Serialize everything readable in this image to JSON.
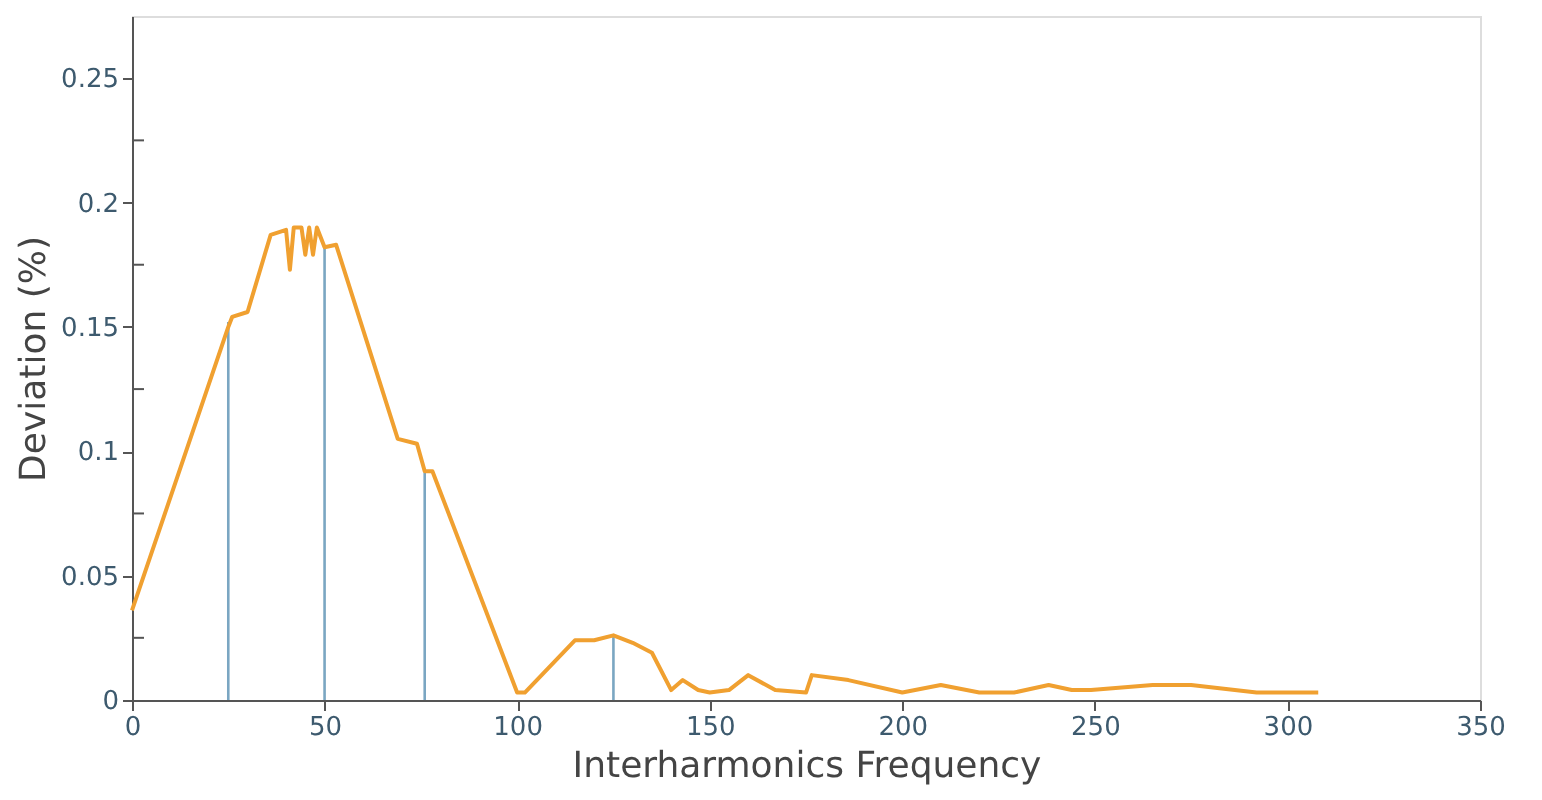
{
  "chart_data": {
    "type": "line",
    "xlabel": "Interharmonics Frequency",
    "ylabel": "Deviation (%)",
    "xlim": [
      0,
      350
    ],
    "xticks": [
      0,
      50,
      100,
      150,
      200,
      250,
      300,
      350
    ],
    "ylim": [
      0,
      0.275
    ],
    "yticks": [
      0,
      {
        "value": 0.025,
        "label": null
      },
      0.05,
      {
        "value": 0.075,
        "label": null
      },
      0.1,
      {
        "value": 0.125,
        "label": null
      },
      0.15,
      {
        "value": 0.175,
        "label": null
      },
      0.2,
      {
        "value": 0.225,
        "label": null
      },
      0.25
    ],
    "grid": false,
    "series": [
      {
        "color": "#f0a030",
        "x": [
          0,
          25,
          26,
          30,
          36,
          40,
          41,
          42,
          44,
          45,
          46,
          47,
          48,
          50,
          53,
          69,
          74,
          76,
          78,
          100,
          102,
          115,
          120,
          125,
          130,
          135,
          140,
          143,
          147,
          150,
          155,
          160,
          167,
          175,
          176.5,
          186,
          200,
          210,
          220,
          229,
          238,
          244,
          249,
          265,
          275,
          292,
          308
        ],
        "values": [
          0.036,
          0.15,
          0.154,
          0.156,
          0.187,
          0.189,
          0.173,
          0.19,
          0.19,
          0.179,
          0.19,
          0.179,
          0.19,
          0.182,
          0.183,
          0.105,
          0.103,
          0.092,
          0.092,
          0.003,
          0.003,
          0.024,
          0.024,
          0.026,
          0.023,
          0.019,
          0.004,
          0.008,
          0.004,
          0.003,
          0.004,
          0.01,
          0.004,
          0.003,
          0.01,
          0.008,
          0.003,
          0.006,
          0.003,
          0.003,
          0.006,
          0.004,
          0.004,
          0.006,
          0.006,
          0.003,
          0.003
        ]
      },
      {
        "type": "bar",
        "color": "#7aa6c2",
        "x": [
          25,
          50,
          76,
          125
        ],
        "values": [
          0.152,
          0.182,
          0.092,
          0.026
        ]
      }
    ]
  }
}
